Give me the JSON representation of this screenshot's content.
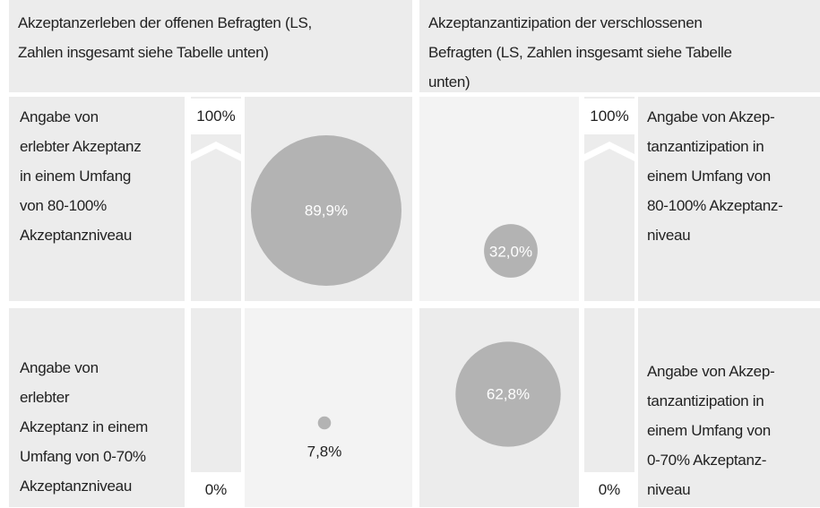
{
  "header": {
    "left": [
      "Akzeptanzerleben der offenen Befragten (LS,",
      "Zahlen insgesamt siehe Tabelle unten)"
    ],
    "right": [
      "Akzeptanzantizipation der verschlossenen",
      "Befragten (LS, Zahlen insgesamt siehe Tabelle",
      "unten)"
    ]
  },
  "scale": {
    "top": "100%",
    "bottom": "0%"
  },
  "rows": [
    {
      "left_label": [
        "Angabe von",
        "erlebter Akzeptanz",
        "in einem Umfang",
        "von 80-100%",
        "Akzeptanzniveau"
      ],
      "left_value": 89.9,
      "left_value_label": "89,9%",
      "right_value": 32.0,
      "right_value_label": "32,0%",
      "right_label": [
        "Angabe von Akzep-",
        "tanzantizipation in",
        "einem Umfang von",
        "80-100% Akzeptanz-",
        "niveau"
      ]
    },
    {
      "left_label": [
        "Angabe von",
        "erlebter",
        "Akzeptanz in einem",
        "Umfang von 0-70%",
        "Akzeptanzniveau"
      ],
      "left_value": 7.8,
      "left_value_label": "7,8%",
      "right_value": 62.8,
      "right_value_label": "62,8%",
      "right_label": [
        "Angabe von Akzep-",
        "tanzantizipation in",
        "einem Umfang von",
        "0-70% Akzeptanz-",
        "niveau"
      ]
    }
  ]
}
